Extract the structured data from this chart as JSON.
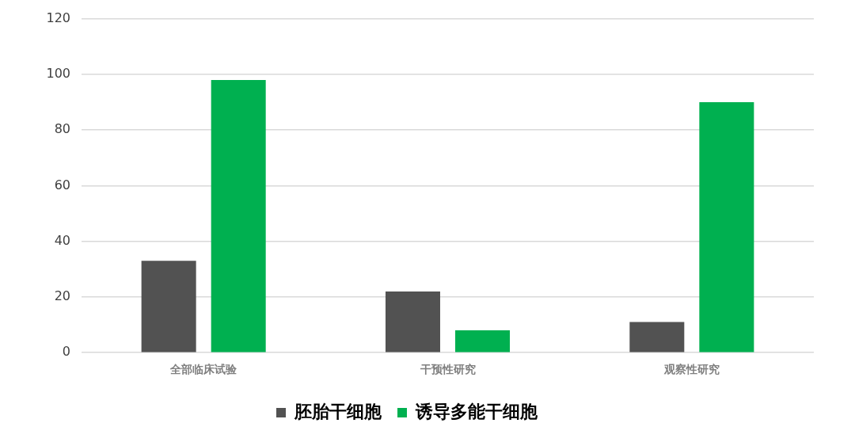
{
  "chart_data": {
    "type": "bar",
    "categories": [
      "全部临床试验",
      "干预性研究",
      "观察性研究"
    ],
    "series": [
      {
        "name": "胚胎干细胞",
        "color": "#525252",
        "values": [
          33,
          22,
          11
        ]
      },
      {
        "name": "诱导多能干细胞",
        "color": "#00b050",
        "values": [
          98,
          8,
          90
        ]
      }
    ],
    "ylim": [
      0,
      120
    ],
    "yticks": [
      0,
      20,
      40,
      60,
      80,
      100,
      120
    ],
    "grid": "y",
    "legend": "bottom"
  }
}
